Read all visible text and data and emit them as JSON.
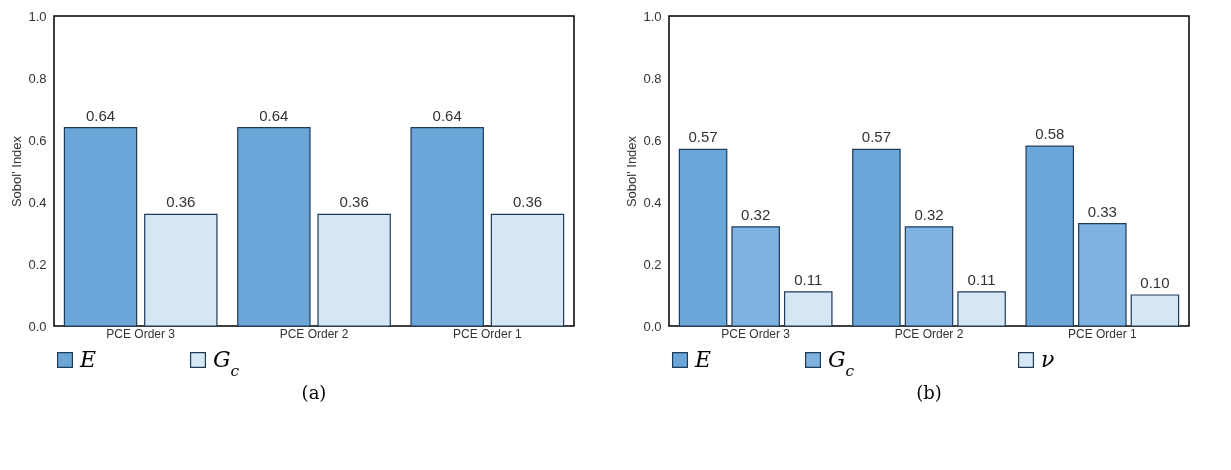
{
  "chart_data": [
    {
      "type": "bar",
      "title": "(a)",
      "ylabel": "Sobol' Index",
      "categories": [
        "PCE Order 3",
        "PCE Order 2",
        "PCE Order 1"
      ],
      "series": [
        {
          "name": "E",
          "color": "#6aa6d8",
          "values": [
            0.64,
            0.64,
            0.64
          ],
          "value_labels": [
            "0.64",
            "0.64",
            "0.64"
          ]
        },
        {
          "name": "G$_{c}$",
          "color": "#d6e6f5",
          "values": [
            0.36,
            0.36,
            0.36
          ],
          "value_labels": [
            "0.36",
            "0.36",
            "0.36"
          ]
        }
      ],
      "ylim": [
        0,
        1
      ],
      "yticks": [
        {
          "value": 0,
          "label": "0.0"
        },
        {
          "value": 0.2,
          "label": "0.2"
        },
        {
          "value": 0.4,
          "label": "0.4"
        },
        {
          "value": 0.6,
          "label": "0.6"
        },
        {
          "value": 0.8,
          "label": "0.8"
        },
        {
          "value": 1,
          "label": "1.0"
        }
      ],
      "legend": "bottom"
    },
    {
      "type": "bar",
      "title": "(b)",
      "ylabel": "Sobol' Index",
      "categories": [
        "PCE Order 3",
        "PCE Order 2",
        "PCE Order 1"
      ],
      "series": [
        {
          "name": "E",
          "color": "#6aa6d8",
          "values": [
            0.57,
            0.57,
            0.58
          ],
          "value_labels": [
            "0.57",
            "0.57",
            "0.58"
          ]
        },
        {
          "name": "G$_{c}$",
          "color": "#7fb2e0",
          "values": [
            0.32,
            0.32,
            0.33
          ],
          "value_labels": [
            "0.32",
            "0.32",
            "0.33"
          ]
        },
        {
          "name": "ν",
          "color": "#d6e6f5",
          "values": [
            0.11,
            0.11,
            0.1
          ],
          "value_labels": [
            "0.11",
            "0.11",
            "0.10"
          ]
        }
      ],
      "ylim": [
        0,
        1
      ],
      "yticks": [
        {
          "value": 0,
          "label": "0.0"
        },
        {
          "value": 0.2,
          "label": "0.2"
        },
        {
          "value": 0.4,
          "label": "0.4"
        },
        {
          "value": 0.6,
          "label": "0.6"
        },
        {
          "value": 0.8,
          "label": "0.8"
        },
        {
          "value": 1,
          "label": "1.0"
        }
      ],
      "legend": "bottom"
    }
  ]
}
